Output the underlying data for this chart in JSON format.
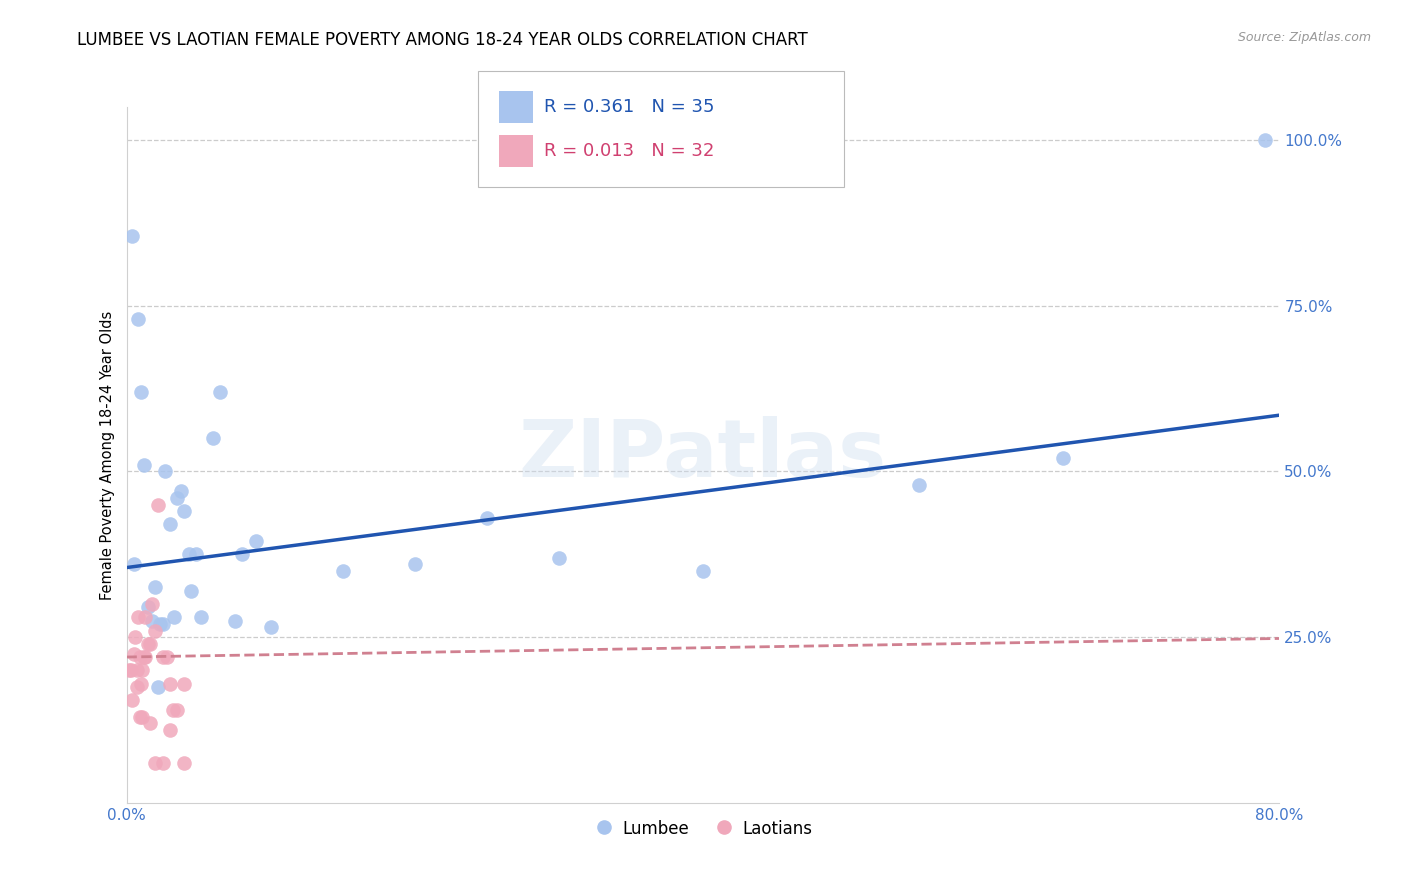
{
  "title": "LUMBEE VS LAOTIAN FEMALE POVERTY AMONG 18-24 YEAR OLDS CORRELATION CHART",
  "source": "Source: ZipAtlas.com",
  "ylabel": "Female Poverty Among 18-24 Year Olds",
  "watermark": "ZIPatlas",
  "xlim": [
    0.0,
    0.8
  ],
  "ylim": [
    0.0,
    1.05
  ],
  "lumbee_R": 0.361,
  "lumbee_N": 35,
  "laotian_R": 0.013,
  "laotian_N": 32,
  "lumbee_x": [
    0.004,
    0.008,
    0.01,
    0.012,
    0.015,
    0.018,
    0.02,
    0.023,
    0.025,
    0.03,
    0.033,
    0.035,
    0.038,
    0.04,
    0.043,
    0.048,
    0.052,
    0.06,
    0.065,
    0.075,
    0.08,
    0.09,
    0.1,
    0.15,
    0.2,
    0.25,
    0.3,
    0.4,
    0.55,
    0.65,
    0.79,
    0.005,
    0.022,
    0.027,
    0.045
  ],
  "lumbee_y": [
    0.855,
    0.73,
    0.62,
    0.51,
    0.295,
    0.275,
    0.325,
    0.27,
    0.27,
    0.42,
    0.28,
    0.46,
    0.47,
    0.44,
    0.375,
    0.375,
    0.28,
    0.55,
    0.62,
    0.275,
    0.375,
    0.395,
    0.265,
    0.35,
    0.36,
    0.43,
    0.37,
    0.35,
    0.48,
    0.52,
    1.0,
    0.36,
    0.175,
    0.5,
    0.32
  ],
  "laotian_x": [
    0.002,
    0.003,
    0.004,
    0.005,
    0.006,
    0.007,
    0.008,
    0.009,
    0.01,
    0.011,
    0.012,
    0.013,
    0.015,
    0.016,
    0.018,
    0.02,
    0.022,
    0.025,
    0.028,
    0.03,
    0.032,
    0.035,
    0.04,
    0.007,
    0.009,
    0.011,
    0.013,
    0.016,
    0.02,
    0.025,
    0.03,
    0.04
  ],
  "laotian_y": [
    0.2,
    0.2,
    0.155,
    0.225,
    0.25,
    0.2,
    0.28,
    0.22,
    0.18,
    0.2,
    0.22,
    0.28,
    0.24,
    0.24,
    0.3,
    0.26,
    0.45,
    0.22,
    0.22,
    0.18,
    0.14,
    0.14,
    0.18,
    0.175,
    0.13,
    0.13,
    0.22,
    0.12,
    0.06,
    0.06,
    0.11,
    0.06
  ],
  "lumbee_color": "#a8c4ee",
  "laotian_color": "#f0a8bb",
  "lumbee_line_color": "#2055b0",
  "laotian_line_color": "#d04070",
  "laotian_line_dash_color": "#d08090",
  "grid_color": "#cccccc",
  "right_label_color": "#4478cc",
  "xtick_color": "#4478cc",
  "ytick_right_vals": [
    1.0,
    0.75,
    0.5,
    0.25
  ],
  "ytick_right_labels": [
    "100.0%",
    "75.0%",
    "50.0%",
    "25.0%"
  ],
  "xtick_vals": [
    0.0,
    0.8
  ],
  "xtick_labels": [
    "0.0%",
    "80.0%"
  ],
  "title_fontsize": 12,
  "label_fontsize": 10.5,
  "tick_fontsize": 11,
  "marker_size": 110,
  "legend_label1": "Lumbee",
  "legend_label2": "Laotians",
  "lumbee_line_start_y": 0.355,
  "lumbee_line_end_y": 0.585,
  "laotian_line_start_y": 0.22,
  "laotian_line_end_y": 0.248
}
